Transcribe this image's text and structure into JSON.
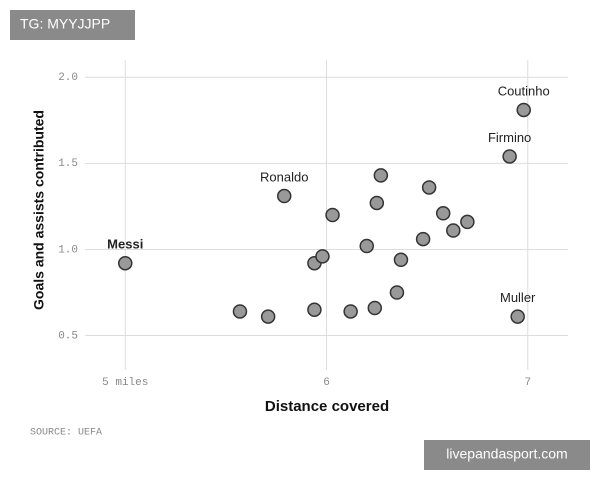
{
  "chart_data": {
    "type": "scatter",
    "x_label": "Distance covered",
    "y_label": "Goals and assists contributed",
    "source": "SOURCE: UEFA",
    "x": [
      5.0,
      5.79,
      6.98,
      6.91,
      6.95,
      5.57,
      5.71,
      5.94,
      5.94,
      5.98,
      6.03,
      6.12,
      6.2,
      6.24,
      6.25,
      6.27,
      6.35,
      6.37,
      6.48,
      6.51,
      6.58,
      6.63,
      6.7
    ],
    "values": [
      0.92,
      1.31,
      1.81,
      1.54,
      0.61,
      0.64,
      0.61,
      0.65,
      0.92,
      0.96,
      1.2,
      0.64,
      1.02,
      0.66,
      1.27,
      1.43,
      0.75,
      0.94,
      1.06,
      1.36,
      1.21,
      1.11,
      1.16
    ],
    "labels": [
      "Messi",
      "Ronaldo",
      "Coutinho",
      "Firmino",
      "Muller",
      null,
      null,
      null,
      null,
      null,
      null,
      null,
      null,
      null,
      null,
      null,
      null,
      null,
      null,
      null,
      null,
      null,
      null
    ],
    "emphasized": 0,
    "color": "#999999",
    "xlim": [
      4.8,
      7.2
    ],
    "ylim": [
      0.3,
      2.1
    ],
    "xticks": [
      {
        "value": 5,
        "label": "5 miles"
      },
      6,
      7
    ],
    "yticks": [
      0.5,
      {
        "value": 1,
        "label": "1.0"
      },
      {
        "value": 1.5,
        "label": "1.5"
      },
      {
        "value": 2,
        "label": "2.0"
      }
    ],
    "grid": true
  },
  "watermarks": {
    "top_left": "TG: MYYJJPP",
    "bottom_right": "livepandasport.com"
  }
}
